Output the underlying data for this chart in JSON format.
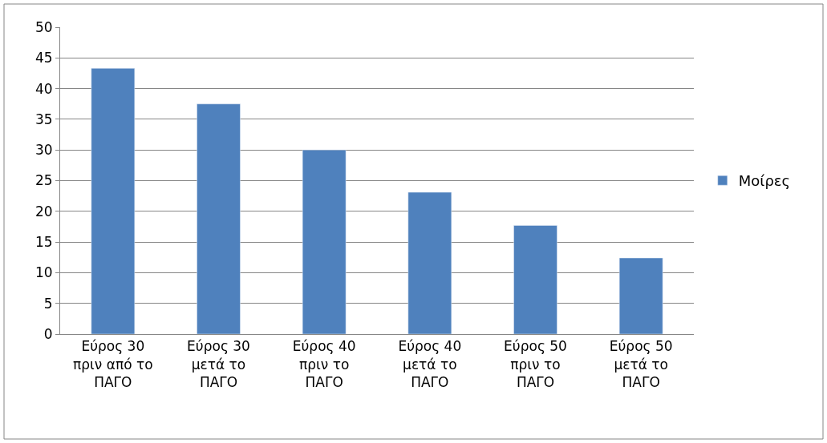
{
  "chart_data": {
    "type": "bar",
    "categories": [
      "Εύρος 30 πριν από το ΠΑΓΟ",
      "Εύρος 30 μετά το ΠΑΓΟ",
      "Εύρος 40 πριν το ΠΑΓΟ",
      "Εύρος 40 μετά το ΠΑΓΟ",
      "Εύρος 50 πριν το ΠΑΓΟ",
      "Εύρος 50 μετά το ΠΑΓΟ"
    ],
    "series": [
      {
        "name": "Μοίρες",
        "color": "#4f81bd",
        "values": [
          43.3,
          37.5,
          30.0,
          23.1,
          17.7,
          12.4
        ]
      }
    ],
    "ylim": [
      0,
      50
    ],
    "yticks": [
      0,
      5,
      10,
      15,
      20,
      25,
      30,
      35,
      40,
      45,
      50
    ],
    "grid": "y",
    "legend": "right"
  }
}
